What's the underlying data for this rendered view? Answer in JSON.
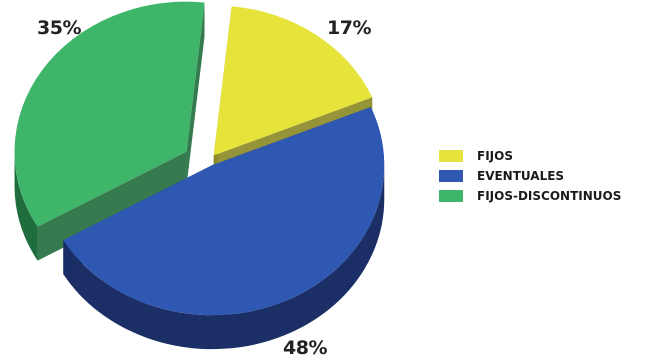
{
  "chart_data": {
    "type": "pie",
    "categories": [
      "FIJOS",
      "EVENTUALES",
      "FIJOS-DISCONTINUOS"
    ],
    "values": [
      17,
      48,
      35
    ],
    "labels": [
      "17%",
      "48%",
      "35%"
    ],
    "colors": [
      "#e6e33a",
      "#2f58b2",
      "#3fb56a"
    ],
    "side_colors": [
      "#8a8824",
      "#1b2f66",
      "#1f6d3c"
    ],
    "title": "",
    "legend_position": "right",
    "style": "3d-exploded"
  }
}
